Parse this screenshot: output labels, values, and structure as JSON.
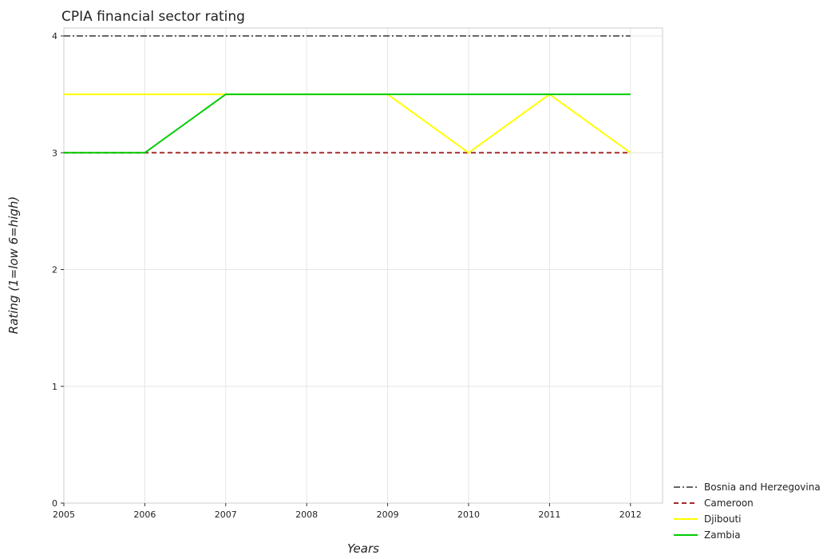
{
  "chart_data": {
    "type": "line",
    "title": "CPIA financial sector rating",
    "xlabel": "Years",
    "ylabel": "Rating (1=low 6=high)",
    "categories": [
      "2005",
      "2006",
      "2007",
      "2008",
      "2009",
      "2010",
      "2011",
      "2012"
    ],
    "ylim": [
      0,
      4
    ],
    "yticks": [
      0,
      1,
      2,
      3,
      4
    ],
    "grid": true,
    "legend_position": "bottom-right",
    "series": [
      {
        "name": "Bosnia and Herzegovina",
        "color": "#666666",
        "dash": "dashdot",
        "values": [
          4,
          4,
          4,
          4,
          4,
          4,
          4,
          4
        ]
      },
      {
        "name": "Cameroon",
        "color": "#a52a2a",
        "dash": "dash",
        "values": [
          3,
          3,
          3,
          3,
          3,
          3,
          3,
          3
        ]
      },
      {
        "name": "Djibouti",
        "color": "#ffff00",
        "dash": "solid",
        "values": [
          3.5,
          3.5,
          3.5,
          3.5,
          3.5,
          3,
          3.5,
          3
        ]
      },
      {
        "name": "Zambia",
        "color": "#00cc00",
        "dash": "solid",
        "values": [
          3,
          3,
          3.5,
          3.5,
          3.5,
          3.5,
          3.5,
          3.5
        ]
      }
    ]
  }
}
